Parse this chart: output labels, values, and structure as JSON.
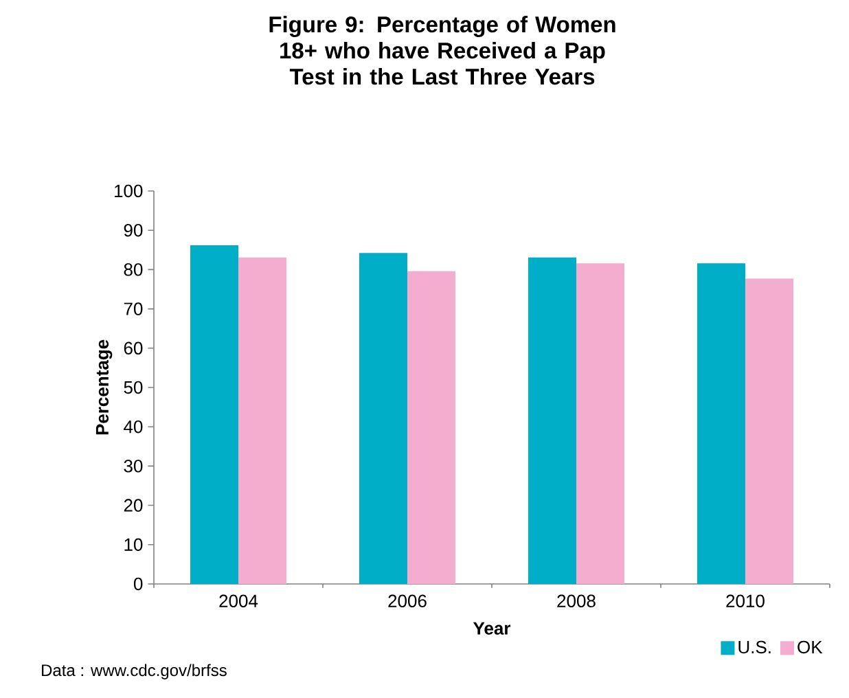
{
  "chart_data": {
    "type": "bar",
    "title": "Figure 9: Percentage of Women 18+ who have Received a Pap Test in the Last Three Years",
    "xlabel": "Year",
    "ylabel": "Percentage",
    "categories": [
      "2004",
      "2006",
      "2008",
      "2010"
    ],
    "series": [
      {
        "name": "U.S.",
        "color": "#00aec7",
        "values": [
          86.2,
          84.2,
          83.1,
          81.6
        ]
      },
      {
        "name": "OK",
        "color": "#f4accf",
        "values": [
          83.1,
          79.6,
          81.6,
          77.7
        ]
      }
    ],
    "ylim": [
      0,
      100
    ],
    "yticks": [
      0,
      10,
      20,
      30,
      40,
      50,
      60,
      70,
      80,
      90,
      100
    ],
    "legend": "bottom right",
    "grid": false,
    "annotations": [
      "Data : www.cdc.gov/brfss"
    ]
  }
}
